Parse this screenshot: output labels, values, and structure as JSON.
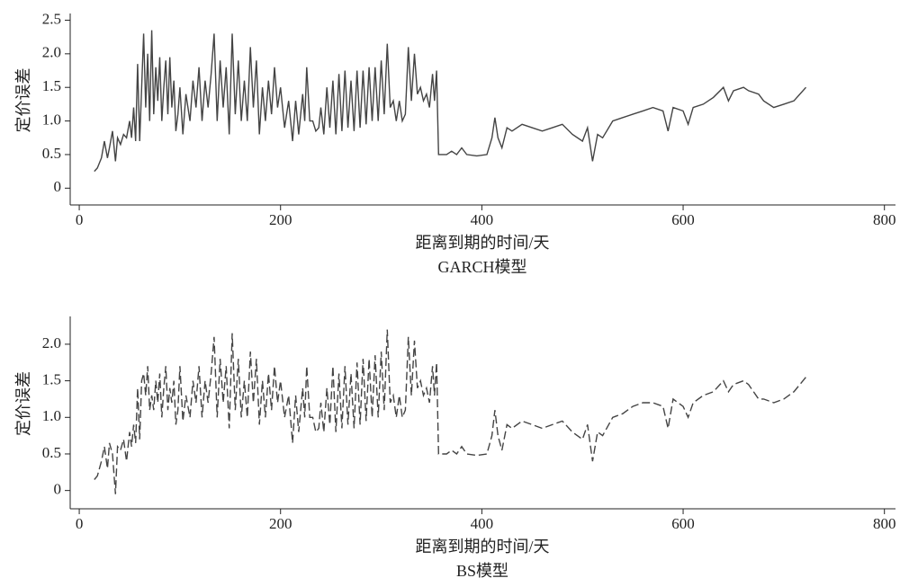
{
  "chart_data": [
    {
      "type": "line",
      "title": "GARCH模型",
      "xlabel": "距离到期的时间/天",
      "ylabel": "定价误差",
      "xlim": [
        -9,
        811
      ],
      "ylim": [
        -0.25,
        2.6
      ],
      "xticks": [
        0,
        200,
        400,
        600,
        800
      ],
      "yticks": [
        0,
        0.5,
        {
          "value": 1,
          "label": "1.0"
        },
        1.5,
        {
          "value": 2,
          "label": "2.0"
        },
        2.5
      ],
      "x": [
        15,
        18,
        22,
        25,
        28,
        30,
        33,
        36,
        38,
        41,
        44,
        47,
        50,
        52,
        54,
        56,
        58,
        60,
        62,
        64,
        66,
        68,
        70,
        72,
        74,
        76,
        78,
        80,
        82,
        84,
        86,
        88,
        90,
        92,
        94,
        96,
        98,
        100,
        103,
        106,
        110,
        113,
        116,
        119,
        122,
        125,
        128,
        131,
        134,
        137,
        140,
        143,
        146,
        149,
        152,
        155,
        158,
        161,
        164,
        167,
        170,
        173,
        176,
        179,
        182,
        185,
        188,
        191,
        194,
        197,
        200,
        204,
        208,
        212,
        215,
        218,
        222,
        224,
        226,
        229,
        232,
        235,
        238,
        240,
        243,
        246,
        249,
        252,
        255,
        258,
        261,
        264,
        267,
        270,
        273,
        276,
        279,
        282,
        285,
        288,
        291,
        294,
        297,
        300,
        303,
        306,
        309,
        312,
        315,
        318,
        321,
        324,
        327,
        330,
        333,
        336,
        339,
        342,
        345,
        348,
        351,
        353,
        355,
        357,
        365,
        370,
        375,
        380,
        385,
        395,
        405,
        410,
        413,
        416,
        420,
        425,
        430,
        440,
        450,
        460,
        470,
        480,
        490,
        500,
        505,
        510,
        515,
        520,
        530,
        540,
        550,
        560,
        570,
        580,
        585,
        590,
        600,
        605,
        610,
        620,
        630,
        640,
        645,
        650,
        660,
        665,
        675,
        680,
        690,
        700,
        710,
        722
      ],
      "series": [
        {
          "color": "#444444",
          "dashed": false,
          "values": [
            0.25,
            0.3,
            0.45,
            0.7,
            0.45,
            0.6,
            0.85,
            0.4,
            0.75,
            0.65,
            0.8,
            0.75,
            1.0,
            0.75,
            1.2,
            0.7,
            1.85,
            0.7,
            1.5,
            2.3,
            1.2,
            2.0,
            1.0,
            2.35,
            1.1,
            1.8,
            1.3,
            1.95,
            1.0,
            1.5,
            1.9,
            1.1,
            1.95,
            1.2,
            1.6,
            0.85,
            1.1,
            1.5,
            0.8,
            1.4,
            1.0,
            1.6,
            1.2,
            1.8,
            1.0,
            1.6,
            1.2,
            1.7,
            2.3,
            1.0,
            1.9,
            1.2,
            1.8,
            0.8,
            2.3,
            1.1,
            1.9,
            1.0,
            1.6,
            1.0,
            2.1,
            1.2,
            1.9,
            0.8,
            1.5,
            1.0,
            1.6,
            1.1,
            1.8,
            1.2,
            1.5,
            0.9,
            1.3,
            0.7,
            1.3,
            0.8,
            1.4,
            1.0,
            1.8,
            1.0,
            1.0,
            0.85,
            0.9,
            1.2,
            0.8,
            1.5,
            0.9,
            1.6,
            0.8,
            1.7,
            0.85,
            1.75,
            0.9,
            1.6,
            0.85,
            1.75,
            0.9,
            1.75,
            0.95,
            1.8,
            1.0,
            1.8,
            1.0,
            1.9,
            1.1,
            2.15,
            1.2,
            1.3,
            1.0,
            1.3,
            1.0,
            1.1,
            2.1,
            1.3,
            2.0,
            1.4,
            1.5,
            1.3,
            1.4,
            1.2,
            1.7,
            1.3,
            1.75,
            0.5,
            0.5,
            0.55,
            0.5,
            0.6,
            0.5,
            0.48,
            0.5,
            0.75,
            1.05,
            0.75,
            0.6,
            0.9,
            0.85,
            0.95,
            0.9,
            0.85,
            0.9,
            0.95,
            0.8,
            0.7,
            0.9,
            0.4,
            0.8,
            0.75,
            1.0,
            1.05,
            1.1,
            1.15,
            1.2,
            1.15,
            0.85,
            1.2,
            1.15,
            0.95,
            1.2,
            1.25,
            1.35,
            1.5,
            1.3,
            1.45,
            1.5,
            1.45,
            1.4,
            1.3,
            1.2,
            1.25,
            1.3,
            1.5
          ]
        }
      ]
    },
    {
      "type": "line",
      "title": "BS模型",
      "xlabel": "距离到期的时间/天",
      "ylabel": "定价误差",
      "xlim": [
        -9,
        811
      ],
      "ylim": [
        -0.25,
        2.38
      ],
      "xticks": [
        0,
        200,
        400,
        600,
        800
      ],
      "yticks": [
        0,
        0.5,
        {
          "value": 1,
          "label": "1.0"
        },
        1.5,
        {
          "value": 2,
          "label": "2.0"
        }
      ],
      "x": [
        15,
        18,
        22,
        25,
        28,
        30,
        33,
        36,
        38,
        41,
        44,
        47,
        50,
        52,
        54,
        56,
        58,
        60,
        62,
        64,
        66,
        68,
        70,
        72,
        74,
        76,
        78,
        80,
        82,
        84,
        86,
        88,
        90,
        92,
        94,
        96,
        98,
        100,
        103,
        106,
        110,
        113,
        116,
        119,
        122,
        125,
        128,
        131,
        134,
        137,
        140,
        143,
        146,
        149,
        152,
        155,
        158,
        161,
        164,
        167,
        170,
        173,
        176,
        179,
        182,
        185,
        188,
        191,
        194,
        197,
        200,
        204,
        208,
        212,
        215,
        218,
        222,
        224,
        226,
        229,
        232,
        235,
        238,
        240,
        243,
        246,
        249,
        252,
        255,
        258,
        261,
        264,
        267,
        270,
        273,
        276,
        279,
        282,
        285,
        288,
        291,
        294,
        297,
        300,
        303,
        306,
        309,
        312,
        315,
        318,
        321,
        324,
        327,
        330,
        333,
        336,
        339,
        342,
        345,
        348,
        351,
        353,
        355,
        357,
        365,
        370,
        375,
        380,
        385,
        395,
        405,
        410,
        413,
        416,
        420,
        425,
        430,
        440,
        450,
        460,
        470,
        480,
        490,
        500,
        505,
        510,
        515,
        520,
        530,
        540,
        550,
        560,
        570,
        580,
        585,
        590,
        600,
        605,
        610,
        620,
        630,
        640,
        645,
        650,
        660,
        665,
        675,
        680,
        690,
        700,
        710,
        722
      ],
      "series": [
        {
          "color": "#444444",
          "dashed": true,
          "values": [
            0.15,
            0.2,
            0.4,
            0.6,
            0.3,
            0.65,
            0.5,
            -0.05,
            0.6,
            0.55,
            0.7,
            0.4,
            0.8,
            0.6,
            0.9,
            0.65,
            1.4,
            0.7,
            1.5,
            1.6,
            1.3,
            1.7,
            1.1,
            1.3,
            1.1,
            1.5,
            1.2,
            1.6,
            1.0,
            1.4,
            1.7,
            1.1,
            1.4,
            1.2,
            1.5,
            0.9,
            1.1,
            1.7,
            0.95,
            1.3,
            1.0,
            1.5,
            1.2,
            1.7,
            1.0,
            1.5,
            1.2,
            1.6,
            2.1,
            1.0,
            1.8,
            1.2,
            1.7,
            0.85,
            2.15,
            1.1,
            1.8,
            1.0,
            1.5,
            1.0,
            1.9,
            1.2,
            1.8,
            0.9,
            1.5,
            1.0,
            1.6,
            1.1,
            1.7,
            1.2,
            1.5,
            1.0,
            1.3,
            0.65,
            1.3,
            0.8,
            1.4,
            1.0,
            1.7,
            1.0,
            1.0,
            0.8,
            0.85,
            1.2,
            0.8,
            1.4,
            0.9,
            1.7,
            0.8,
            1.6,
            0.85,
            1.7,
            0.9,
            1.6,
            0.85,
            1.75,
            0.9,
            1.8,
            0.95,
            1.8,
            1.0,
            1.85,
            1.0,
            1.9,
            1.1,
            2.2,
            1.2,
            1.3,
            1.0,
            1.3,
            1.0,
            1.1,
            2.1,
            1.3,
            2.05,
            1.4,
            1.5,
            1.3,
            1.4,
            1.2,
            1.7,
            1.3,
            1.75,
            0.5,
            0.5,
            0.55,
            0.5,
            0.6,
            0.5,
            0.48,
            0.5,
            0.75,
            1.1,
            0.75,
            0.55,
            0.9,
            0.85,
            0.95,
            0.9,
            0.85,
            0.9,
            0.95,
            0.8,
            0.7,
            0.9,
            0.4,
            0.8,
            0.75,
            1.0,
            1.05,
            1.15,
            1.2,
            1.2,
            1.15,
            0.85,
            1.25,
            1.15,
            1.0,
            1.2,
            1.3,
            1.35,
            1.5,
            1.35,
            1.45,
            1.5,
            1.45,
            1.25,
            1.25,
            1.2,
            1.25,
            1.35,
            1.55
          ]
        }
      ]
    }
  ]
}
